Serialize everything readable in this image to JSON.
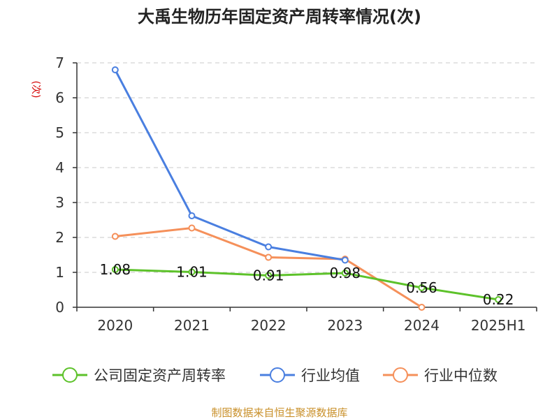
{
  "chart_data": {
    "type": "line",
    "title": "大禹生物历年固定资产周转率情况(次)",
    "ylabel": "(次)",
    "xlabel": "",
    "categories": [
      "2020",
      "2021",
      "2022",
      "2023",
      "2024",
      "2025H1"
    ],
    "ylim": [
      0,
      7
    ],
    "yticks": [
      0,
      1,
      2,
      3,
      4,
      5,
      6,
      7
    ],
    "grid": true,
    "legend_position": "bottom",
    "series": [
      {
        "name": "公司固定资产周转率",
        "color": "#5dc22a",
        "values": [
          1.08,
          1.01,
          0.91,
          0.98,
          0.56,
          0.22
        ],
        "labels": [
          "1.08",
          "1.01",
          "0.91",
          "0.98",
          "0.56",
          "0.22"
        ]
      },
      {
        "name": "行业均值",
        "color": "#4a7fe0",
        "values": [
          6.8,
          2.62,
          1.73,
          1.35,
          null,
          null
        ]
      },
      {
        "name": "行业中位数",
        "color": "#f5905a",
        "values": [
          2.03,
          2.27,
          1.43,
          1.38,
          0.0,
          null
        ]
      }
    ],
    "source": "制图数据来自恒生聚源数据库"
  }
}
